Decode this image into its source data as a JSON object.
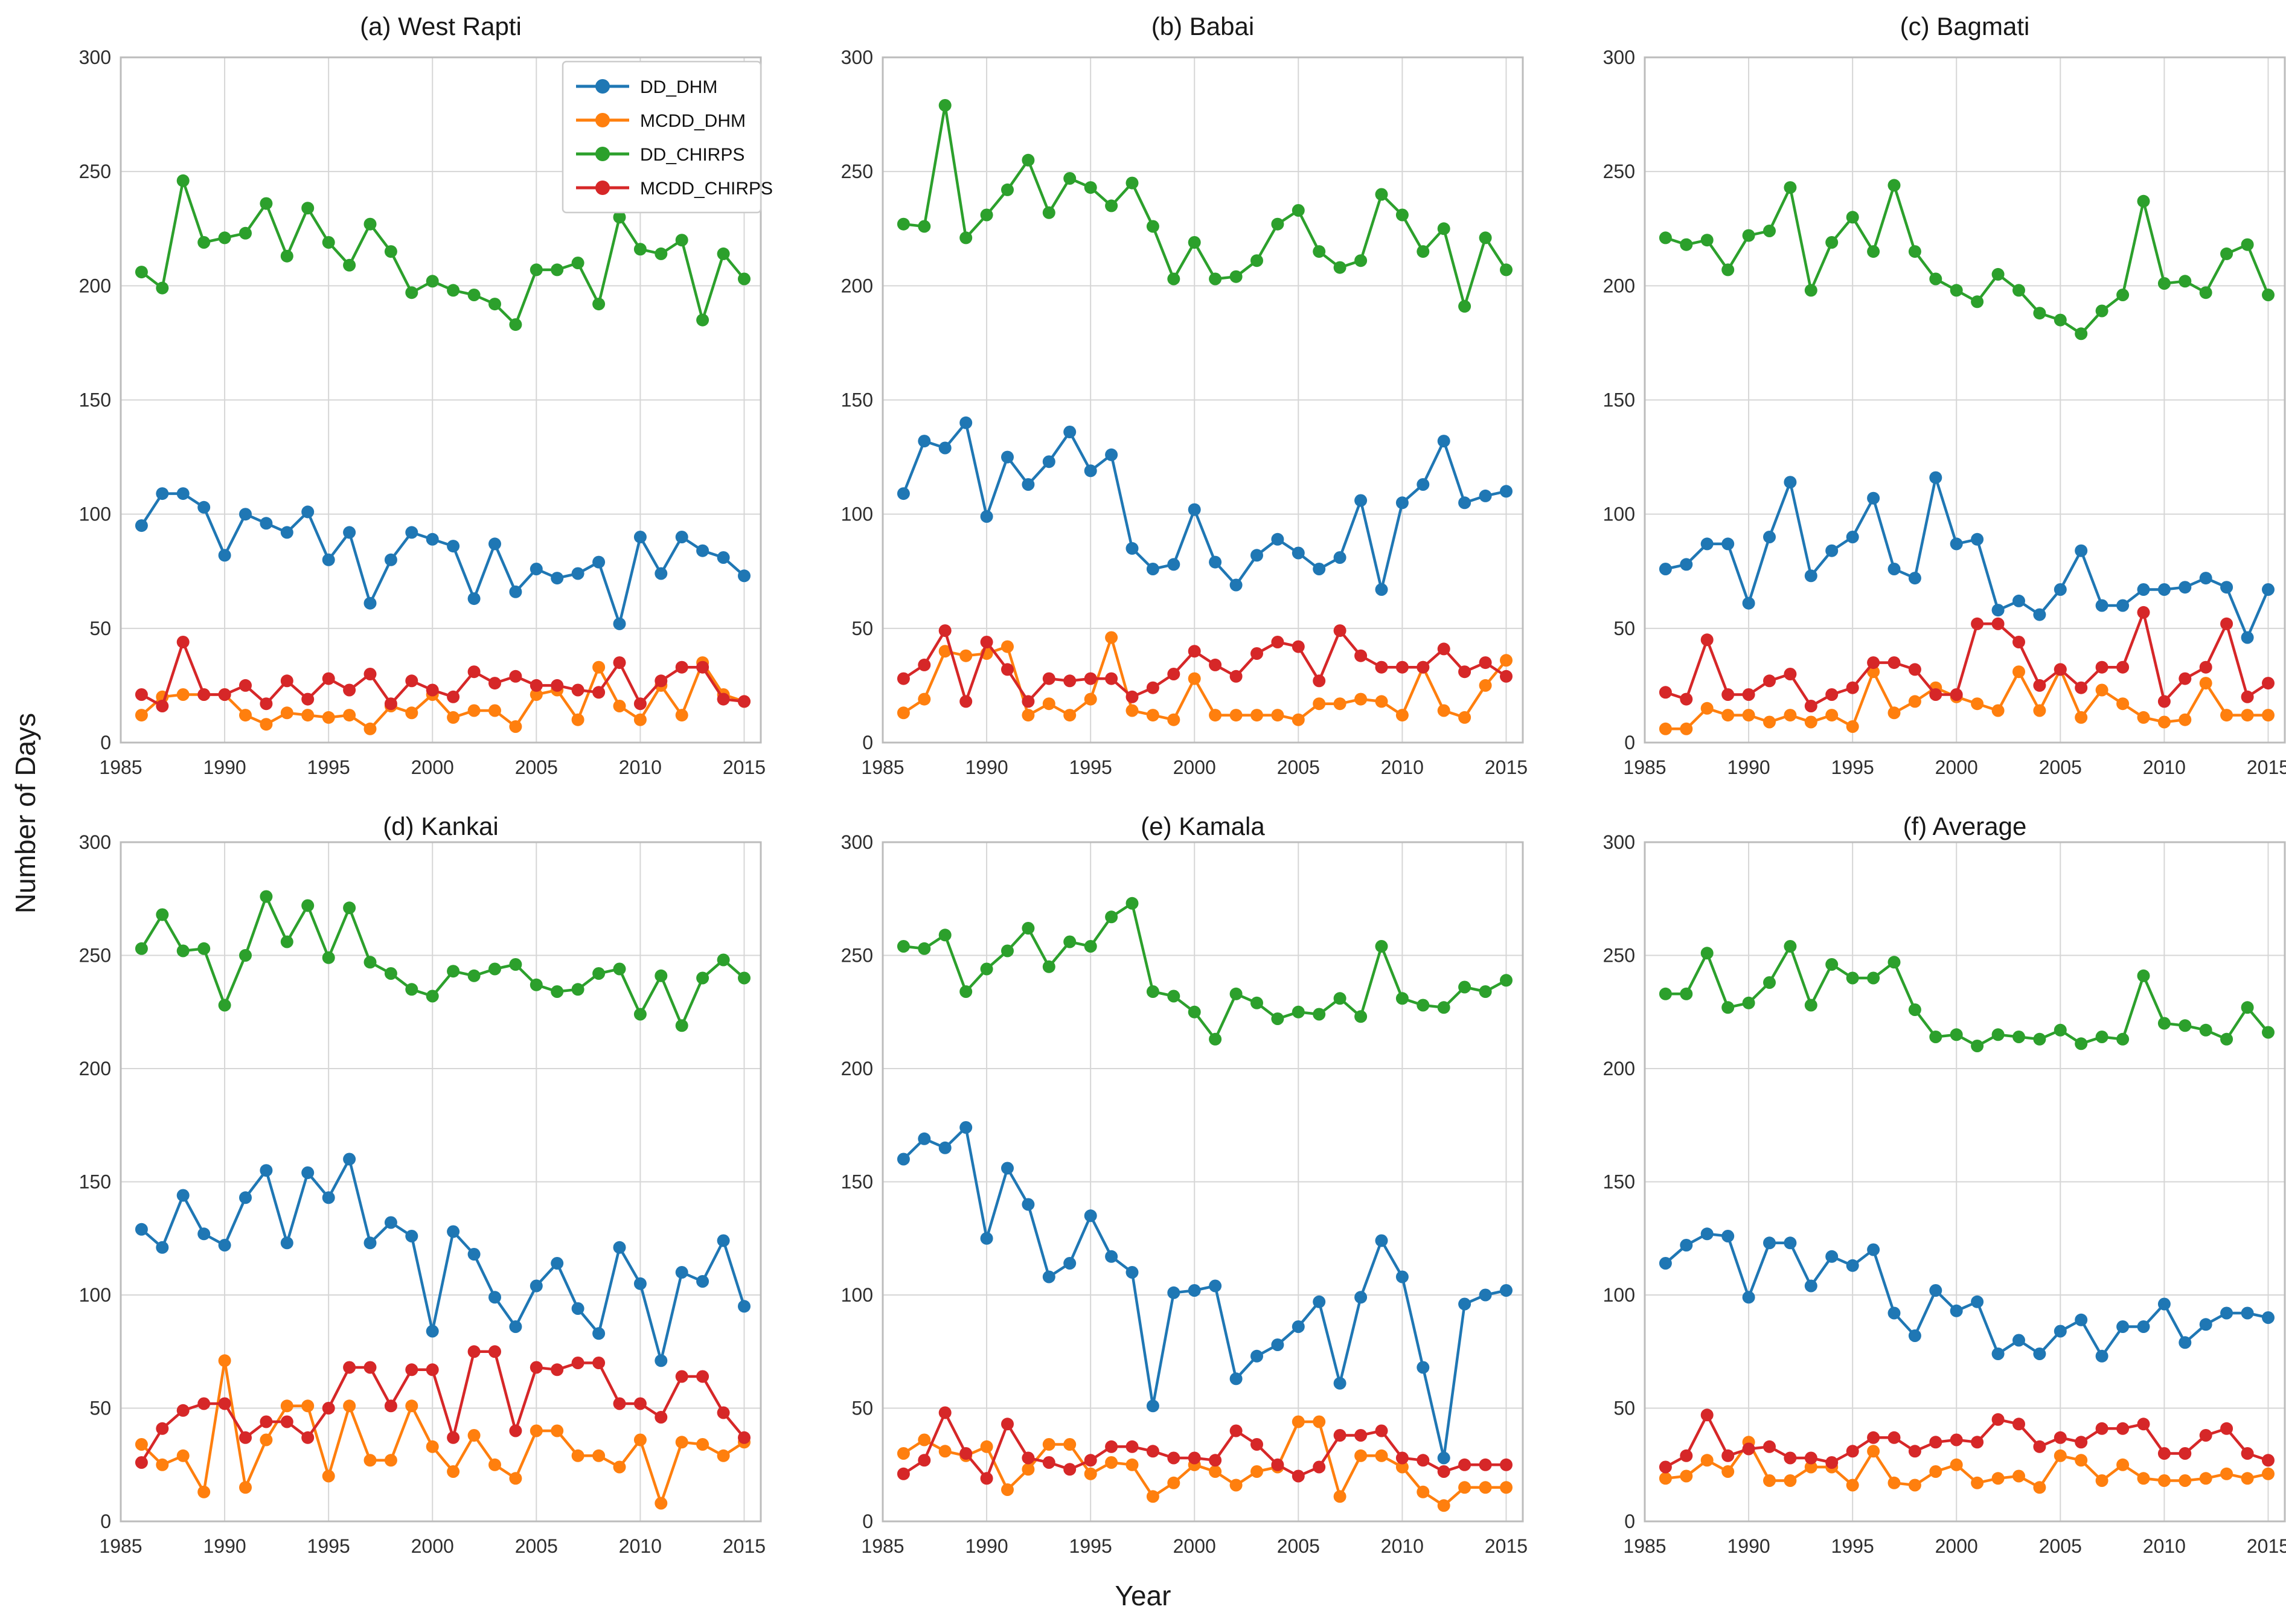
{
  "figure": {
    "xlabel": "Year",
    "ylabel": "Number of Days",
    "background_color": "#ffffff",
    "grid_color": "#d6d6d6",
    "spine_color": "#bcbcbc",
    "tick_label_color": "#2e2e2e",
    "title_color": "#171717"
  },
  "legend": {
    "location": "upper right of subplot (a)",
    "border_color": "#cccccc",
    "background": "#ffffff",
    "entries": [
      "DD_DHM",
      "MCDD_DHM",
      "DD_CHIRPS",
      "MCDD_CHIRPS"
    ]
  },
  "chart_data": {
    "type": "line",
    "marker": "circle",
    "grid": true,
    "xlabel": "Year",
    "ylabel": "Number of Days",
    "xlim": [
      1985,
      2015.8
    ],
    "ylim": [
      0,
      300
    ],
    "xticks": [
      1985,
      1990,
      1995,
      2000,
      2005,
      2010,
      2015
    ],
    "yticks": [
      0,
      50,
      100,
      150,
      200,
      250,
      300
    ],
    "x_years": [
      1986,
      1987,
      1988,
      1989,
      1990,
      1991,
      1992,
      1993,
      1994,
      1995,
      1996,
      1997,
      1998,
      1999,
      2000,
      2001,
      2002,
      2003,
      2004,
      2005,
      2006,
      2007,
      2008,
      2009,
      2010,
      2011,
      2012,
      2013,
      2014,
      2015
    ],
    "series_colors": {
      "DD_DHM": "#1f77b4",
      "MCDD_DHM": "#ff7f0e",
      "DD_CHIRPS": "#2ca02c",
      "MCDD_CHIRPS": "#d62728"
    },
    "subplots": [
      {
        "id": "a",
        "title": "(a) West Rapti",
        "has_legend": true,
        "series": [
          {
            "name": "DD_DHM",
            "values": [
              95,
              109,
              109,
              103,
              82,
              100,
              96,
              92,
              101,
              80,
              92,
              61,
              80,
              92,
              89,
              86,
              63,
              87,
              66,
              76,
              72,
              74,
              79,
              52,
              90,
              74,
              90,
              84,
              81,
              73
            ]
          },
          {
            "name": "MCDD_DHM",
            "values": [
              12,
              20,
              21,
              21,
              21,
              12,
              8,
              13,
              12,
              11,
              12,
              6,
              16,
              13,
              21,
              11,
              14,
              14,
              7,
              21,
              23,
              10,
              33,
              16,
              10,
              25,
              12,
              35,
              21,
              18
            ]
          },
          {
            "name": "DD_CHIRPS",
            "values": [
              206,
              199,
              246,
              219,
              221,
              223,
              236,
              213,
              234,
              219,
              209,
              227,
              215,
              197,
              202,
              198,
              196,
              192,
              183,
              207,
              207,
              210,
              192,
              230,
              216,
              214,
              220,
              185,
              214,
              203
            ]
          },
          {
            "name": "MCDD_CHIRPS",
            "values": [
              21,
              16,
              44,
              21,
              21,
              25,
              17,
              27,
              19,
              28,
              23,
              30,
              17,
              27,
              23,
              20,
              31,
              26,
              29,
              25,
              25,
              23,
              22,
              35,
              17,
              27,
              33,
              33,
              19,
              18
            ]
          }
        ]
      },
      {
        "id": "b",
        "title": "(b) Babai",
        "has_legend": false,
        "series": [
          {
            "name": "DD_DHM",
            "values": [
              109,
              132,
              129,
              140,
              99,
              125,
              113,
              123,
              136,
              119,
              126,
              85,
              76,
              78,
              102,
              79,
              69,
              82,
              89,
              83,
              76,
              81,
              106,
              67,
              105,
              113,
              132,
              105,
              108,
              110
            ]
          },
          {
            "name": "MCDD_DHM",
            "values": [
              13,
              19,
              40,
              38,
              39,
              42,
              12,
              17,
              12,
              19,
              46,
              14,
              12,
              10,
              28,
              12,
              12,
              12,
              12,
              10,
              17,
              17,
              19,
              18,
              12,
              33,
              14,
              11,
              25,
              36
            ]
          },
          {
            "name": "DD_CHIRPS",
            "values": [
              227,
              226,
              279,
              221,
              231,
              242,
              255,
              232,
              247,
              243,
              235,
              245,
              226,
              203,
              219,
              203,
              204,
              211,
              227,
              233,
              215,
              208,
              211,
              240,
              231,
              215,
              225,
              191,
              221,
              207
            ]
          },
          {
            "name": "MCDD_CHIRPS",
            "values": [
              28,
              34,
              49,
              18,
              44,
              32,
              18,
              28,
              27,
              28,
              28,
              20,
              24,
              30,
              40,
              34,
              29,
              39,
              44,
              42,
              27,
              49,
              38,
              33,
              33,
              33,
              41,
              31,
              35,
              29
            ]
          }
        ]
      },
      {
        "id": "c",
        "title": "(c) Bagmati",
        "has_legend": false,
        "series": [
          {
            "name": "DD_DHM",
            "values": [
              76,
              78,
              87,
              87,
              61,
              90,
              114,
              73,
              84,
              90,
              107,
              76,
              72,
              116,
              87,
              89,
              58,
              62,
              56,
              67,
              84,
              60,
              60,
              67,
              67,
              68,
              72,
              68,
              46,
              67
            ]
          },
          {
            "name": "MCDD_DHM",
            "values": [
              6,
              6,
              15,
              12,
              12,
              9,
              12,
              9,
              12,
              7,
              31,
              13,
              18,
              24,
              20,
              17,
              14,
              31,
              14,
              32,
              11,
              23,
              17,
              11,
              9,
              10,
              26,
              12,
              12,
              12
            ]
          },
          {
            "name": "DD_CHIRPS",
            "values": [
              221,
              218,
              220,
              207,
              222,
              224,
              243,
              198,
              219,
              230,
              215,
              244,
              215,
              203,
              198,
              193,
              205,
              198,
              188,
              185,
              179,
              189,
              196,
              237,
              201,
              202,
              197,
              214,
              218,
              196
            ]
          },
          {
            "name": "MCDD_CHIRPS",
            "values": [
              22,
              19,
              45,
              21,
              21,
              27,
              30,
              16,
              21,
              24,
              35,
              35,
              32,
              21,
              21,
              52,
              52,
              44,
              25,
              32,
              24,
              33,
              33,
              57,
              18,
              28,
              33,
              52,
              20,
              26
            ]
          }
        ]
      },
      {
        "id": "d",
        "title": "(d) Kankai",
        "has_legend": false,
        "series": [
          {
            "name": "DD_DHM",
            "values": [
              129,
              121,
              144,
              127,
              122,
              143,
              155,
              123,
              154,
              143,
              160,
              123,
              132,
              126,
              84,
              128,
              118,
              99,
              86,
              104,
              114,
              94,
              83,
              121,
              105,
              71,
              110,
              106,
              124,
              95
            ]
          },
          {
            "name": "MCDD_DHM",
            "values": [
              34,
              25,
              29,
              13,
              71,
              15,
              36,
              51,
              51,
              20,
              51,
              27,
              27,
              51,
              33,
              22,
              38,
              25,
              19,
              40,
              40,
              29,
              29,
              24,
              36,
              8,
              35,
              34,
              29,
              35
            ]
          },
          {
            "name": "DD_CHIRPS",
            "values": [
              253,
              268,
              252,
              253,
              228,
              250,
              276,
              256,
              272,
              249,
              271,
              247,
              242,
              235,
              232,
              243,
              241,
              244,
              246,
              237,
              234,
              235,
              242,
              244,
              224,
              241,
              219,
              240,
              248,
              240
            ]
          },
          {
            "name": "MCDD_CHIRPS",
            "values": [
              26,
              41,
              49,
              52,
              52,
              37,
              44,
              44,
              37,
              50,
              68,
              68,
              51,
              67,
              67,
              37,
              75,
              75,
              40,
              68,
              67,
              70,
              70,
              52,
              52,
              46,
              64,
              64,
              48,
              37
            ]
          }
        ]
      },
      {
        "id": "e",
        "title": "(e) Kamala",
        "has_legend": false,
        "series": [
          {
            "name": "DD_DHM",
            "values": [
              160,
              169,
              165,
              174,
              125,
              156,
              140,
              108,
              114,
              135,
              117,
              110,
              51,
              101,
              102,
              104,
              63,
              73,
              78,
              86,
              97,
              61,
              99,
              124,
              108,
              68,
              28,
              96,
              100,
              102
            ]
          },
          {
            "name": "MCDD_DHM",
            "values": [
              30,
              36,
              31,
              29,
              33,
              14,
              23,
              34,
              34,
              21,
              26,
              25,
              11,
              17,
              25,
              22,
              16,
              22,
              24,
              44,
              44,
              11,
              29,
              29,
              24,
              13,
              7,
              15,
              15,
              15
            ]
          },
          {
            "name": "DD_CHIRPS",
            "values": [
              254,
              253,
              259,
              234,
              244,
              252,
              262,
              245,
              256,
              254,
              267,
              273,
              234,
              232,
              225,
              213,
              233,
              229,
              222,
              225,
              224,
              231,
              223,
              254,
              231,
              228,
              227,
              236,
              234,
              239
            ]
          },
          {
            "name": "MCDD_CHIRPS",
            "values": [
              21,
              27,
              48,
              30,
              19,
              43,
              28,
              26,
              23,
              27,
              33,
              33,
              31,
              28,
              28,
              27,
              40,
              34,
              25,
              20,
              24,
              38,
              38,
              40,
              28,
              27,
              22,
              25,
              25,
              25
            ]
          }
        ]
      },
      {
        "id": "f",
        "title": "(f) Average",
        "has_legend": false,
        "series": [
          {
            "name": "DD_DHM",
            "values": [
              114,
              122,
              127,
              126,
              99,
              123,
              123,
              104,
              117,
              113,
              120,
              92,
              82,
              102,
              93,
              97,
              74,
              80,
              74,
              84,
              89,
              73,
              86,
              86,
              96,
              79,
              87,
              92,
              92,
              90
            ]
          },
          {
            "name": "MCDD_DHM",
            "values": [
              19,
              20,
              27,
              22,
              35,
              18,
              18,
              24,
              24,
              16,
              31,
              17,
              16,
              22,
              25,
              17,
              19,
              20,
              15,
              29,
              27,
              18,
              25,
              19,
              18,
              18,
              19,
              21,
              19,
              21
            ]
          },
          {
            "name": "DD_CHIRPS",
            "values": [
              233,
              233,
              251,
              227,
              229,
              238,
              254,
              228,
              246,
              240,
              240,
              247,
              226,
              214,
              215,
              210,
              215,
              214,
              213,
              217,
              211,
              214,
              213,
              241,
              220,
              219,
              217,
              213,
              227,
              216
            ]
          },
          {
            "name": "MCDD_CHIRPS",
            "values": [
              24,
              29,
              47,
              29,
              32,
              33,
              28,
              28,
              26,
              31,
              37,
              37,
              31,
              35,
              36,
              35,
              45,
              43,
              33,
              37,
              35,
              41,
              41,
              43,
              30,
              30,
              38,
              41,
              30,
              27
            ]
          }
        ]
      }
    ]
  }
}
